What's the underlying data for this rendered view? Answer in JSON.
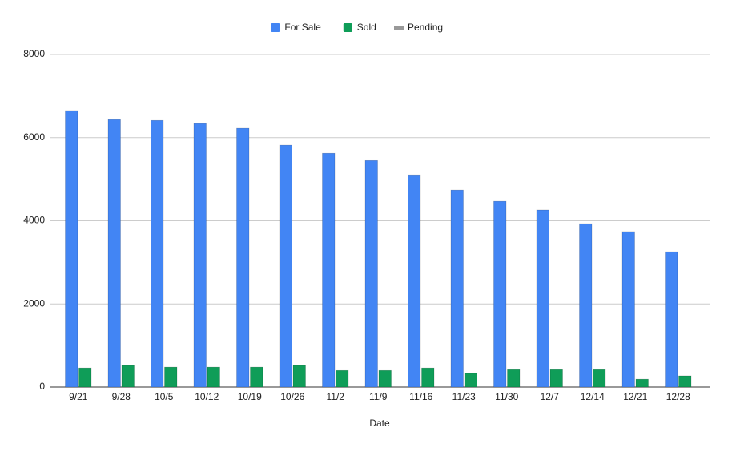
{
  "chart_data": {
    "type": "bar",
    "x_label": "Date",
    "categories": [
      "9/21",
      "9/28",
      "10/5",
      "10/12",
      "10/19",
      "10/26",
      "11/2",
      "11/9",
      "11/16",
      "11/23",
      "11/30",
      "12/7",
      "12/14",
      "12/21",
      "12/28"
    ],
    "series": [
      {
        "name": "For Sale",
        "color": "#4285f4",
        "values": [
          6650,
          6435,
          6415,
          6340,
          6225,
          5820,
          5625,
          5450,
          5105,
          4740,
          4470,
          4260,
          3930,
          3740,
          3255
        ]
      },
      {
        "name": "Sold",
        "color": "#0f9d58",
        "values": [
          460,
          520,
          480,
          480,
          480,
          520,
          400,
          400,
          460,
          330,
          420,
          420,
          420,
          190,
          270
        ]
      },
      {
        "name": "Pending",
        "color": "#999999",
        "type": "line",
        "values": [
          null,
          null,
          null,
          null,
          null,
          null,
          null,
          null,
          null,
          null,
          null,
          null,
          null,
          null,
          null
        ]
      }
    ],
    "ylim": [
      0,
      8000
    ],
    "yticks": [
      0,
      2000,
      4000,
      6000,
      8000
    ],
    "grid": true,
    "legend": "top"
  }
}
